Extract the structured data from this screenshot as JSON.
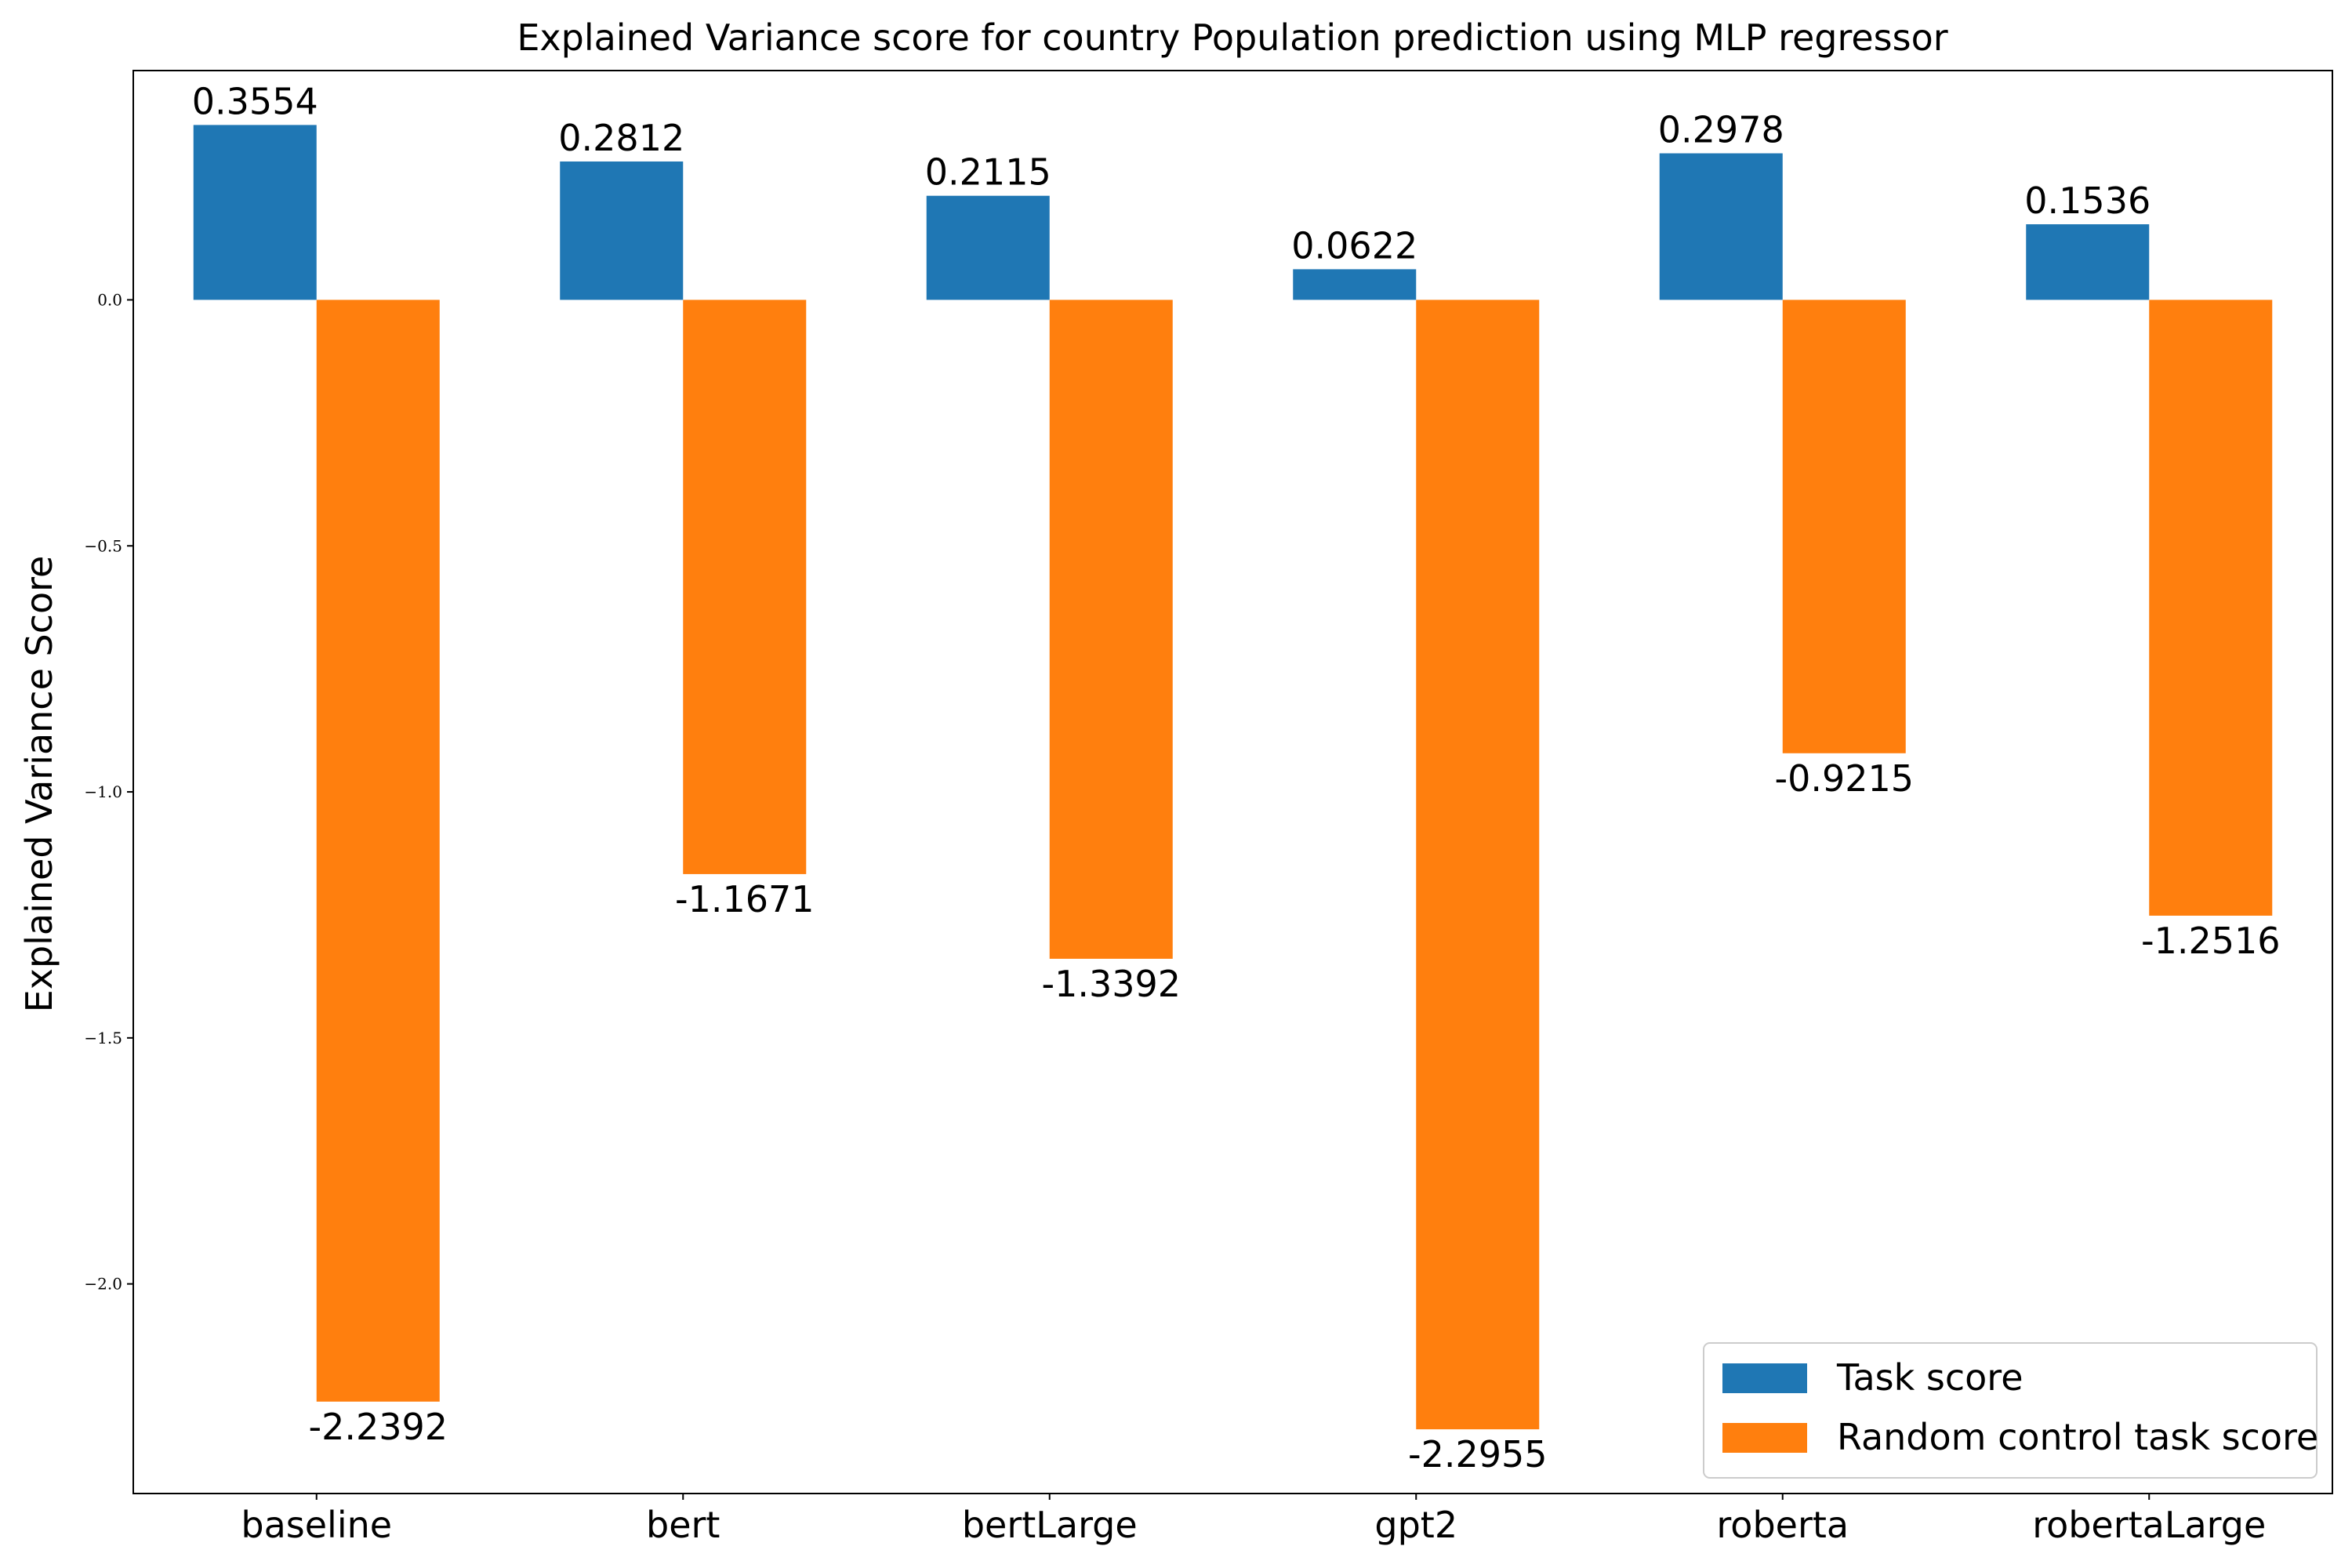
{
  "chart_data": {
    "type": "bar",
    "title": "Explained Variance score for country Population prediction using MLP regressor",
    "xlabel": "",
    "ylabel": "Explained Variance Score",
    "categories": [
      "baseline",
      "bert",
      "bertLarge",
      "gpt2",
      "roberta",
      "robertaLarge"
    ],
    "series": [
      {
        "name": "Task score",
        "color": "#1f77b4",
        "values": [
          0.3554,
          0.2812,
          0.2115,
          0.0622,
          0.2978,
          0.1536
        ],
        "labels": [
          "0.3554",
          "0.2812",
          "0.2115",
          "0.0622",
          "0.2978",
          "0.1536"
        ]
      },
      {
        "name": "Random control task score",
        "color": "#ff7f0e",
        "values": [
          -2.2392,
          -1.1671,
          -1.3392,
          -2.2955,
          -0.9215,
          -1.2516
        ],
        "labels": [
          "-2.2392",
          "-1.1671",
          "-1.3392",
          "-2.2955",
          "-0.9215",
          "-1.2516"
        ]
      }
    ],
    "ylim": [
      -2.426,
      0.466
    ],
    "yticks": [
      0.0,
      -0.5,
      -1.0,
      -1.5,
      -2.0
    ],
    "ytick_labels": [
      "0.0",
      "−0.5",
      "−1.0",
      "−1.5",
      "−2.0"
    ],
    "grid": false,
    "legend_position": "bottom-right"
  }
}
